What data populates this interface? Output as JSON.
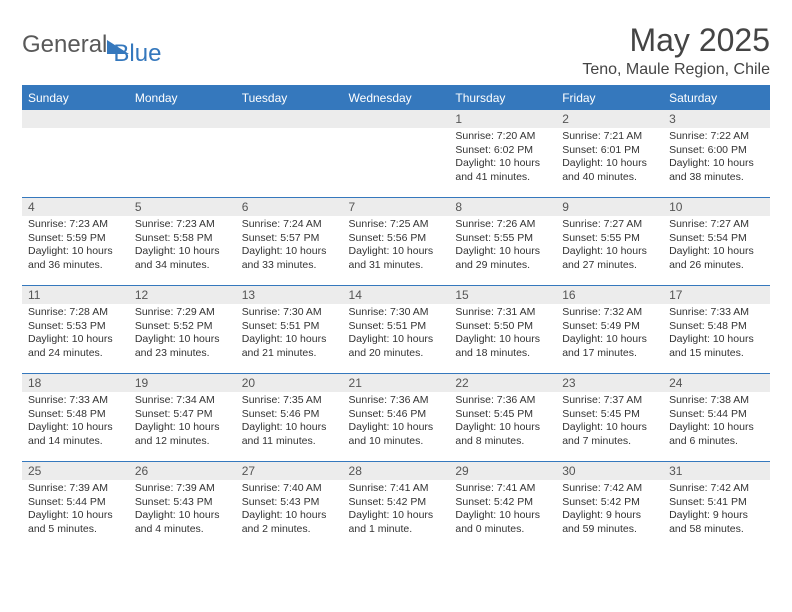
{
  "brand": {
    "name1": "General",
    "name2": "Blue"
  },
  "title": "May 2025",
  "location": "Teno, Maule Region, Chile",
  "colors": {
    "accent": "#3578bd",
    "daybg": "#ececec"
  },
  "dow": [
    "Sunday",
    "Monday",
    "Tuesday",
    "Wednesday",
    "Thursday",
    "Friday",
    "Saturday"
  ],
  "weeks": [
    [
      {
        "n": "",
        "sr": "",
        "ss": "",
        "dl": ""
      },
      {
        "n": "",
        "sr": "",
        "ss": "",
        "dl": ""
      },
      {
        "n": "",
        "sr": "",
        "ss": "",
        "dl": ""
      },
      {
        "n": "",
        "sr": "",
        "ss": "",
        "dl": ""
      },
      {
        "n": "1",
        "sr": "Sunrise: 7:20 AM",
        "ss": "Sunset: 6:02 PM",
        "dl": "Daylight: 10 hours and 41 minutes."
      },
      {
        "n": "2",
        "sr": "Sunrise: 7:21 AM",
        "ss": "Sunset: 6:01 PM",
        "dl": "Daylight: 10 hours and 40 minutes."
      },
      {
        "n": "3",
        "sr": "Sunrise: 7:22 AM",
        "ss": "Sunset: 6:00 PM",
        "dl": "Daylight: 10 hours and 38 minutes."
      }
    ],
    [
      {
        "n": "4",
        "sr": "Sunrise: 7:23 AM",
        "ss": "Sunset: 5:59 PM",
        "dl": "Daylight: 10 hours and 36 minutes."
      },
      {
        "n": "5",
        "sr": "Sunrise: 7:23 AM",
        "ss": "Sunset: 5:58 PM",
        "dl": "Daylight: 10 hours and 34 minutes."
      },
      {
        "n": "6",
        "sr": "Sunrise: 7:24 AM",
        "ss": "Sunset: 5:57 PM",
        "dl": "Daylight: 10 hours and 33 minutes."
      },
      {
        "n": "7",
        "sr": "Sunrise: 7:25 AM",
        "ss": "Sunset: 5:56 PM",
        "dl": "Daylight: 10 hours and 31 minutes."
      },
      {
        "n": "8",
        "sr": "Sunrise: 7:26 AM",
        "ss": "Sunset: 5:55 PM",
        "dl": "Daylight: 10 hours and 29 minutes."
      },
      {
        "n": "9",
        "sr": "Sunrise: 7:27 AM",
        "ss": "Sunset: 5:55 PM",
        "dl": "Daylight: 10 hours and 27 minutes."
      },
      {
        "n": "10",
        "sr": "Sunrise: 7:27 AM",
        "ss": "Sunset: 5:54 PM",
        "dl": "Daylight: 10 hours and 26 minutes."
      }
    ],
    [
      {
        "n": "11",
        "sr": "Sunrise: 7:28 AM",
        "ss": "Sunset: 5:53 PM",
        "dl": "Daylight: 10 hours and 24 minutes."
      },
      {
        "n": "12",
        "sr": "Sunrise: 7:29 AM",
        "ss": "Sunset: 5:52 PM",
        "dl": "Daylight: 10 hours and 23 minutes."
      },
      {
        "n": "13",
        "sr": "Sunrise: 7:30 AM",
        "ss": "Sunset: 5:51 PM",
        "dl": "Daylight: 10 hours and 21 minutes."
      },
      {
        "n": "14",
        "sr": "Sunrise: 7:30 AM",
        "ss": "Sunset: 5:51 PM",
        "dl": "Daylight: 10 hours and 20 minutes."
      },
      {
        "n": "15",
        "sr": "Sunrise: 7:31 AM",
        "ss": "Sunset: 5:50 PM",
        "dl": "Daylight: 10 hours and 18 minutes."
      },
      {
        "n": "16",
        "sr": "Sunrise: 7:32 AM",
        "ss": "Sunset: 5:49 PM",
        "dl": "Daylight: 10 hours and 17 minutes."
      },
      {
        "n": "17",
        "sr": "Sunrise: 7:33 AM",
        "ss": "Sunset: 5:48 PM",
        "dl": "Daylight: 10 hours and 15 minutes."
      }
    ],
    [
      {
        "n": "18",
        "sr": "Sunrise: 7:33 AM",
        "ss": "Sunset: 5:48 PM",
        "dl": "Daylight: 10 hours and 14 minutes."
      },
      {
        "n": "19",
        "sr": "Sunrise: 7:34 AM",
        "ss": "Sunset: 5:47 PM",
        "dl": "Daylight: 10 hours and 12 minutes."
      },
      {
        "n": "20",
        "sr": "Sunrise: 7:35 AM",
        "ss": "Sunset: 5:46 PM",
        "dl": "Daylight: 10 hours and 11 minutes."
      },
      {
        "n": "21",
        "sr": "Sunrise: 7:36 AM",
        "ss": "Sunset: 5:46 PM",
        "dl": "Daylight: 10 hours and 10 minutes."
      },
      {
        "n": "22",
        "sr": "Sunrise: 7:36 AM",
        "ss": "Sunset: 5:45 PM",
        "dl": "Daylight: 10 hours and 8 minutes."
      },
      {
        "n": "23",
        "sr": "Sunrise: 7:37 AM",
        "ss": "Sunset: 5:45 PM",
        "dl": "Daylight: 10 hours and 7 minutes."
      },
      {
        "n": "24",
        "sr": "Sunrise: 7:38 AM",
        "ss": "Sunset: 5:44 PM",
        "dl": "Daylight: 10 hours and 6 minutes."
      }
    ],
    [
      {
        "n": "25",
        "sr": "Sunrise: 7:39 AM",
        "ss": "Sunset: 5:44 PM",
        "dl": "Daylight: 10 hours and 5 minutes."
      },
      {
        "n": "26",
        "sr": "Sunrise: 7:39 AM",
        "ss": "Sunset: 5:43 PM",
        "dl": "Daylight: 10 hours and 4 minutes."
      },
      {
        "n": "27",
        "sr": "Sunrise: 7:40 AM",
        "ss": "Sunset: 5:43 PM",
        "dl": "Daylight: 10 hours and 2 minutes."
      },
      {
        "n": "28",
        "sr": "Sunrise: 7:41 AM",
        "ss": "Sunset: 5:42 PM",
        "dl": "Daylight: 10 hours and 1 minute."
      },
      {
        "n": "29",
        "sr": "Sunrise: 7:41 AM",
        "ss": "Sunset: 5:42 PM",
        "dl": "Daylight: 10 hours and 0 minutes."
      },
      {
        "n": "30",
        "sr": "Sunrise: 7:42 AM",
        "ss": "Sunset: 5:42 PM",
        "dl": "Daylight: 9 hours and 59 minutes."
      },
      {
        "n": "31",
        "sr": "Sunrise: 7:42 AM",
        "ss": "Sunset: 5:41 PM",
        "dl": "Daylight: 9 hours and 58 minutes."
      }
    ]
  ]
}
